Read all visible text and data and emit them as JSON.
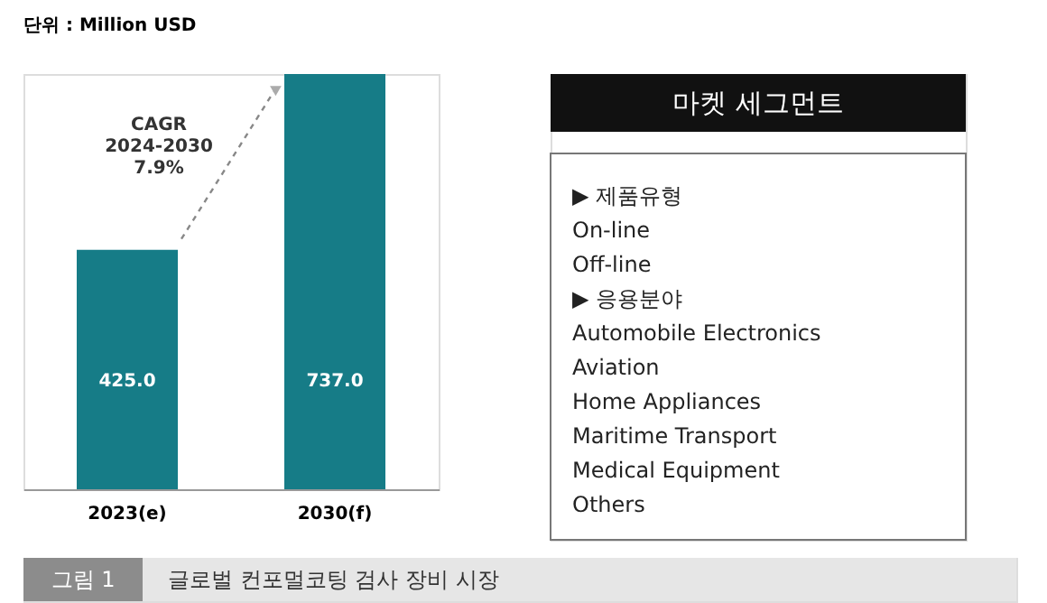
{
  "chart_data": [
    {
      "type": "bar",
      "ylabel": "단위 : Million USD",
      "categories": [
        "2023(e)",
        "2030(f)"
      ],
      "values": [
        425.0,
        737.0
      ],
      "color": "#167c87",
      "value_labels": [
        "425.0",
        "737.0"
      ],
      "annotations": [
        "CAGR\n2024-2030\n7.9%",
        "그림 1",
        "글로벌 컨포멀코팅 검사 장비 시장"
      ]
    },
    {
      "type": "other",
      "title": "마켓 세그먼트",
      "annotations": [
        "▶ 제품유형",
        "On-line",
        "Off-line",
        "▶ 응용분야",
        "Automobile Electronics",
        "Aviation",
        "Home Appliances",
        "Maritime Transport",
        "Medical Equipment",
        "Others"
      ]
    }
  ]
}
